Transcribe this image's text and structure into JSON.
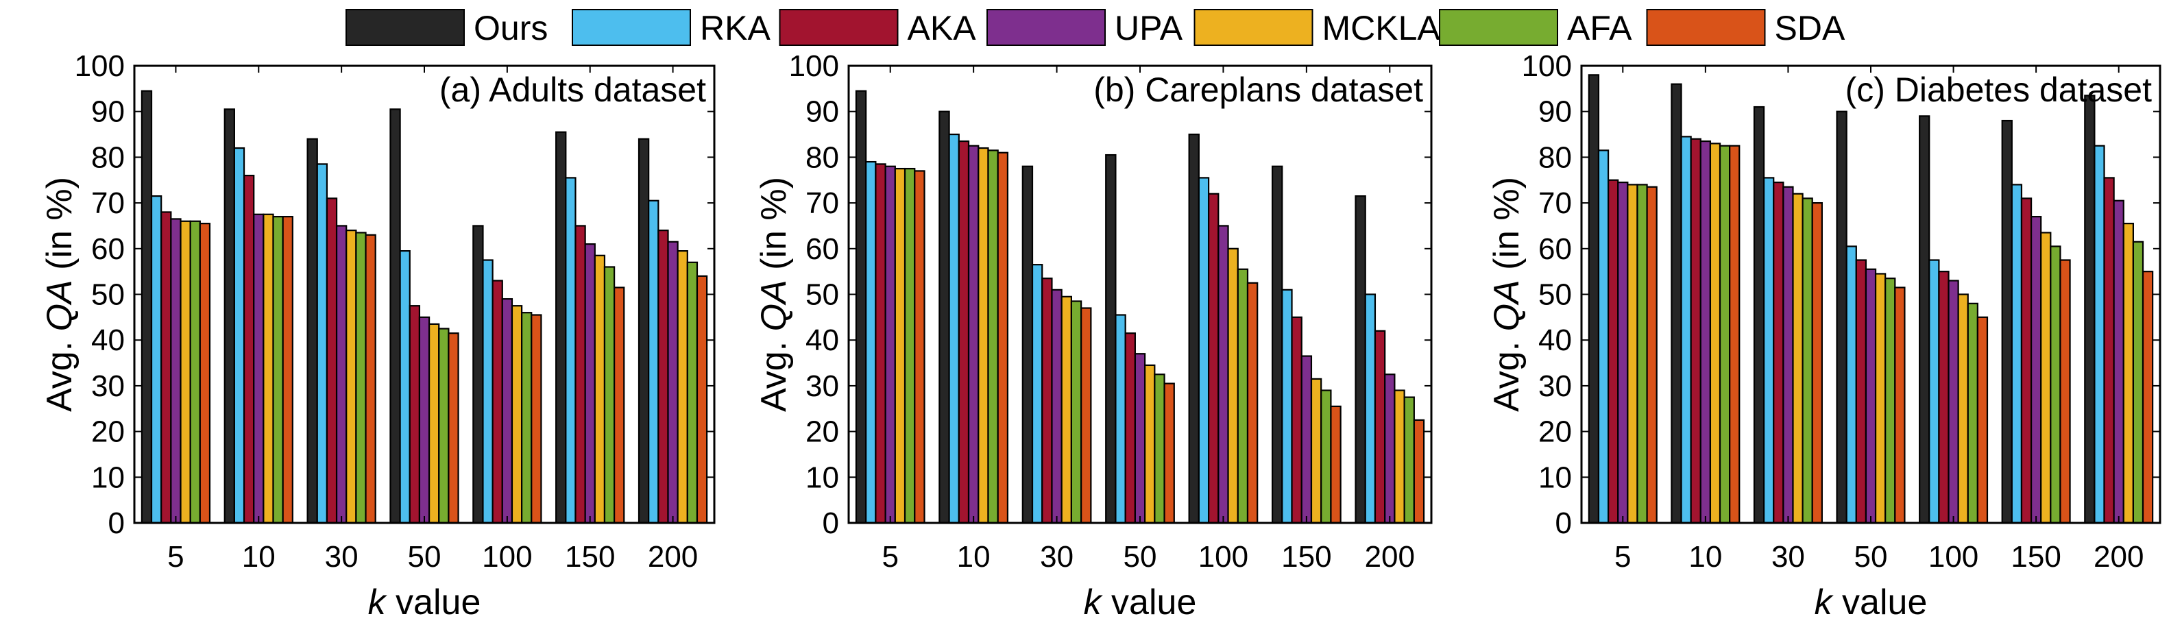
{
  "legend": [
    {
      "name": "Ours",
      "color": "#262626"
    },
    {
      "name": "RKA",
      "color": "#4DBEEE"
    },
    {
      "name": "AKA",
      "color": "#A2142F"
    },
    {
      "name": "UPA",
      "color": "#7E2F8E"
    },
    {
      "name": "MCKLA",
      "color": "#EDB120"
    },
    {
      "name": "AFA",
      "color": "#77AC30"
    },
    {
      "name": "SDA",
      "color": "#D95319"
    }
  ],
  "chart_data": [
    {
      "type": "bar",
      "title": "(a) Adults dataset",
      "xlabel_italic": "k",
      "xlabel_rest": " value",
      "ylabel_pre": "Avg. ",
      "ylabel_italic": "QA",
      "ylabel_post": " (in %)",
      "ylim": [
        0,
        100
      ],
      "yticks": [
        0,
        10,
        20,
        30,
        40,
        50,
        60,
        70,
        80,
        90,
        100
      ],
      "categories": [
        "5",
        "10",
        "30",
        "50",
        "100",
        "150",
        "200"
      ],
      "series": [
        {
          "name": "Ours",
          "values": [
            94.5,
            90.5,
            84,
            90.5,
            65,
            85.5,
            84
          ]
        },
        {
          "name": "RKA",
          "values": [
            71.5,
            82,
            78.5,
            59.5,
            57.5,
            75.5,
            70.5
          ]
        },
        {
          "name": "AKA",
          "values": [
            68,
            76,
            71,
            47.5,
            53,
            65,
            64
          ]
        },
        {
          "name": "UPA",
          "values": [
            66.5,
            67.5,
            65,
            45,
            49,
            61,
            61.5
          ]
        },
        {
          "name": "MCKLA",
          "values": [
            66,
            67.5,
            64,
            43.5,
            47.5,
            58.5,
            59.5
          ]
        },
        {
          "name": "AFA",
          "values": [
            66,
            67,
            63.5,
            42.5,
            46,
            56,
            57
          ]
        },
        {
          "name": "SDA",
          "values": [
            65.5,
            67,
            63,
            41.5,
            45.5,
            51.5,
            54
          ]
        }
      ]
    },
    {
      "type": "bar",
      "title": "(b) Careplans dataset",
      "xlabel_italic": "k",
      "xlabel_rest": " value",
      "ylabel_pre": "Avg. ",
      "ylabel_italic": "QA",
      "ylabel_post": " (in %)",
      "ylim": [
        0,
        100
      ],
      "yticks": [
        0,
        10,
        20,
        30,
        40,
        50,
        60,
        70,
        80,
        90,
        100
      ],
      "categories": [
        "5",
        "10",
        "30",
        "50",
        "100",
        "150",
        "200"
      ],
      "series": [
        {
          "name": "Ours",
          "values": [
            94.5,
            90,
            78,
            80.5,
            85,
            78,
            71.5
          ]
        },
        {
          "name": "RKA",
          "values": [
            79,
            85,
            56.5,
            45.5,
            75.5,
            51,
            50
          ]
        },
        {
          "name": "AKA",
          "values": [
            78.5,
            83.5,
            53.5,
            41.5,
            72,
            45,
            42
          ]
        },
        {
          "name": "UPA",
          "values": [
            78,
            82.5,
            51,
            37,
            65,
            36.5,
            32.5
          ]
        },
        {
          "name": "MCKLA",
          "values": [
            77.5,
            82,
            49.5,
            34.5,
            60,
            31.5,
            29
          ]
        },
        {
          "name": "AFA",
          "values": [
            77.5,
            81.5,
            48.5,
            32.5,
            55.5,
            29,
            27.5
          ]
        },
        {
          "name": "SDA",
          "values": [
            77,
            81,
            47,
            30.5,
            52.5,
            25.5,
            22.5
          ]
        }
      ]
    },
    {
      "type": "bar",
      "title": "(c) Diabetes dataset",
      "xlabel_italic": "k",
      "xlabel_rest": " value",
      "ylabel_pre": "Avg. ",
      "ylabel_italic": "QA",
      "ylabel_post": " (in %)",
      "ylim": [
        0,
        100
      ],
      "yticks": [
        0,
        10,
        20,
        30,
        40,
        50,
        60,
        70,
        80,
        90,
        100
      ],
      "categories": [
        "5",
        "10",
        "30",
        "50",
        "100",
        "150",
        "200"
      ],
      "series": [
        {
          "name": "Ours",
          "values": [
            98,
            96,
            91,
            90,
            89,
            88,
            93.5
          ]
        },
        {
          "name": "RKA",
          "values": [
            81.5,
            84.5,
            75.5,
            60.5,
            57.5,
            74,
            82.5
          ]
        },
        {
          "name": "AKA",
          "values": [
            75,
            84,
            74.5,
            57.5,
            55,
            71,
            75.5
          ]
        },
        {
          "name": "UPA",
          "values": [
            74.5,
            83.5,
            73.5,
            55.5,
            53,
            67,
            70.5
          ]
        },
        {
          "name": "MCKLA",
          "values": [
            74,
            83,
            72,
            54.5,
            50,
            63.5,
            65.5
          ]
        },
        {
          "name": "AFA",
          "values": [
            74,
            82.5,
            71,
            53.5,
            48,
            60.5,
            61.5
          ]
        },
        {
          "name": "SDA",
          "values": [
            73.5,
            82.5,
            70,
            51.5,
            45,
            57.5,
            55
          ]
        }
      ]
    }
  ]
}
